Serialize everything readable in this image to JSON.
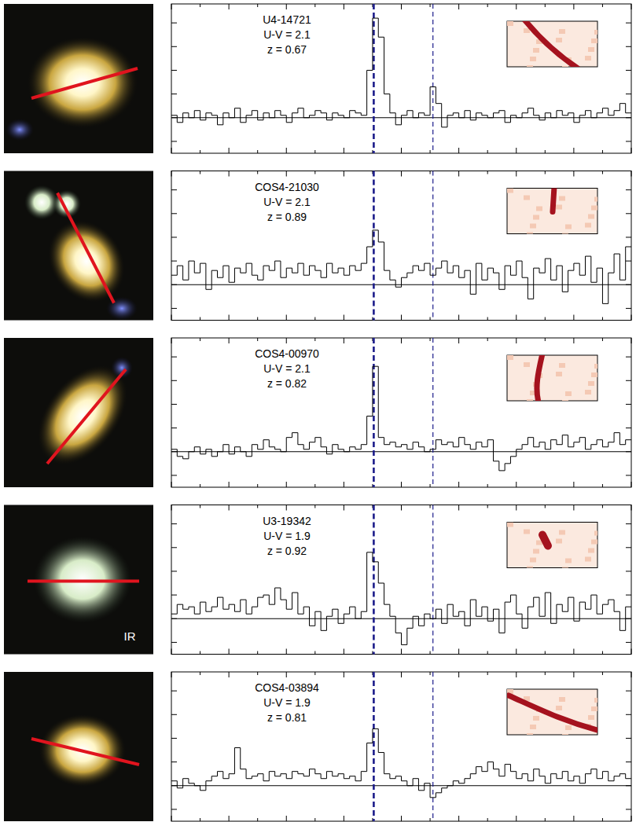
{
  "chart_data": [
    {
      "type": "line",
      "line_style": "step",
      "annotations": [
        "U4-14721",
        "U-V = 2.1",
        "z = 0.67"
      ],
      "x": [
        0,
        1,
        2,
        3,
        4,
        5,
        6,
        7,
        8,
        9,
        10,
        11,
        12,
        13,
        14,
        15,
        16,
        17,
        18,
        19,
        20,
        21,
        22,
        23,
        24,
        25,
        26,
        27,
        28,
        29,
        30,
        31,
        32,
        33,
        34,
        35,
        36,
        37,
        38,
        39,
        40,
        41,
        42,
        43,
        44,
        45,
        46,
        47,
        48,
        49,
        50,
        51,
        52,
        53,
        54,
        55,
        56,
        57,
        58,
        59,
        60,
        61,
        62,
        63,
        64,
        65,
        66,
        67,
        68,
        69,
        70,
        71,
        72,
        73,
        74,
        75,
        76,
        77,
        78,
        79
      ],
      "values": [
        0.1,
        -0.2,
        0.2,
        0.0,
        0.3,
        -0.1,
        0.2,
        0.1,
        -0.3,
        0.2,
        0.0,
        0.4,
        -0.2,
        0.1,
        0.3,
        -0.1,
        0.2,
        0.0,
        0.3,
        0.1,
        -0.2,
        0.2,
        0.4,
        0.0,
        0.1,
        0.3,
        0.2,
        -0.1,
        0.2,
        0.1,
        0.0,
        0.3,
        0.2,
        0.1,
        2.0,
        4.2,
        3.4,
        1.0,
        0.2,
        -0.3,
        0.1,
        0.3,
        0.0,
        0.2,
        0.1,
        1.3,
        0.6,
        -0.4,
        0.1,
        0.2,
        0.0,
        0.3,
        -0.1,
        0.2,
        0.1,
        0.0,
        0.2,
        0.3,
        -0.2,
        0.1,
        0.0,
        0.2,
        0.4,
        0.1,
        -0.1,
        0.2,
        0.0,
        0.3,
        0.1,
        0.2,
        -0.2,
        0.1,
        0.3,
        0.0,
        0.2,
        0.4,
        0.1,
        0.3,
        0.6,
        0.2
      ],
      "lines_x": [
        35.2,
        45.5
      ],
      "xlim": [
        0,
        80
      ],
      "ylim": [
        -1.5,
        4.8
      ],
      "xticks": [
        0,
        5,
        10,
        15,
        20,
        25,
        30,
        35,
        40,
        45,
        50,
        55,
        60,
        65,
        70,
        75,
        80
      ],
      "yticks": [
        -1,
        0,
        1,
        2,
        3,
        4
      ],
      "tick_labels": false,
      "grid": false
    },
    {
      "type": "line",
      "line_style": "step",
      "annotations": [
        "COS4-21030",
        "U-V = 2.1",
        "z = 0.89"
      ],
      "x": [
        0,
        1,
        2,
        3,
        4,
        5,
        6,
        7,
        8,
        9,
        10,
        11,
        12,
        13,
        14,
        15,
        16,
        17,
        18,
        19,
        20,
        21,
        22,
        23,
        24,
        25,
        26,
        27,
        28,
        29,
        30,
        31,
        32,
        33,
        34,
        35,
        36,
        37,
        38,
        39,
        40,
        41,
        42,
        43,
        44,
        45,
        46,
        47,
        48,
        49,
        50,
        51,
        52,
        53,
        54,
        55,
        56,
        57,
        58,
        59,
        60,
        61,
        62,
        63,
        64,
        65,
        66,
        67,
        68,
        69,
        70,
        71,
        72,
        73,
        74,
        75,
        76,
        77,
        78,
        79
      ],
      "values": [
        0.4,
        0.8,
        0.2,
        1.0,
        0.5,
        0.9,
        -0.2,
        0.6,
        0.3,
        0.8,
        0.1,
        0.7,
        0.5,
        0.9,
        0.4,
        0.2,
        0.8,
        0.6,
        1.0,
        0.3,
        0.7,
        0.5,
        0.9,
        0.4,
        0.8,
        0.6,
        0.3,
        0.9,
        0.5,
        0.7,
        0.4,
        0.8,
        0.6,
        0.9,
        1.6,
        2.3,
        1.8,
        0.6,
        0.2,
        -0.1,
        0.3,
        0.5,
        0.8,
        0.6,
        0.9,
        0.4,
        0.7,
        1.0,
        0.5,
        0.8,
        0.3,
        0.6,
        -0.4,
        0.9,
        0.2,
        0.7,
        0.5,
        -0.2,
        0.8,
        0.4,
        1.0,
        0.3,
        -0.6,
        0.7,
        0.5,
        1.1,
        0.2,
        0.8,
        -0.3,
        0.6,
        0.9,
        0.4,
        1.2,
        0.1,
        0.7,
        -0.8,
        0.5,
        1.3,
        0.2,
        1.6
      ],
      "lines_x": [
        35.2,
        45.5
      ],
      "xlim": [
        0,
        80
      ],
      "ylim": [
        -1.5,
        4.8
      ],
      "xticks": [
        0,
        5,
        10,
        15,
        20,
        25,
        30,
        35,
        40,
        45,
        50,
        55,
        60,
        65,
        70,
        75,
        80
      ],
      "yticks": [
        -1,
        0,
        1,
        2,
        3,
        4
      ],
      "tick_labels": false,
      "grid": false
    },
    {
      "type": "line",
      "line_style": "step",
      "annotations": [
        "COS4-00970",
        "U-V = 2.1",
        "z = 0.82"
      ],
      "x": [
        0,
        1,
        2,
        3,
        4,
        5,
        6,
        7,
        8,
        9,
        10,
        11,
        12,
        13,
        14,
        15,
        16,
        17,
        18,
        19,
        20,
        21,
        22,
        23,
        24,
        25,
        26,
        27,
        28,
        29,
        30,
        31,
        32,
        33,
        34,
        35,
        36,
        37,
        38,
        39,
        40,
        41,
        42,
        43,
        44,
        45,
        46,
        47,
        48,
        49,
        50,
        51,
        52,
        53,
        54,
        55,
        56,
        57,
        58,
        59,
        60,
        61,
        62,
        63,
        64,
        65,
        66,
        67,
        68,
        69,
        70,
        71,
        72,
        73,
        74,
        75,
        76,
        77,
        78,
        79
      ],
      "values": [
        0.1,
        -0.2,
        -0.3,
        0.0,
        0.2,
        -0.1,
        0.1,
        -0.2,
        0.0,
        0.3,
        -0.1,
        0.2,
        0.0,
        -0.2,
        0.3,
        0.1,
        0.5,
        0.2,
        0.1,
        0.0,
        0.6,
        0.8,
        0.3,
        0.1,
        0.4,
        0.6,
        0.2,
        -0.1,
        0.3,
        0.1,
        0.0,
        0.2,
        0.1,
        0.3,
        1.5,
        3.6,
        0.6,
        0.3,
        0.4,
        0.2,
        0.3,
        0.1,
        0.4,
        0.2,
        0.0,
        0.1,
        0.5,
        0.3,
        0.4,
        0.2,
        0.6,
        0.3,
        0.1,
        0.4,
        0.2,
        0.5,
        -0.4,
        -0.8,
        -0.5,
        -0.2,
        0.1,
        0.3,
        0.6,
        0.2,
        0.4,
        0.1,
        0.5,
        0.3,
        0.7,
        0.2,
        0.4,
        0.6,
        0.1,
        0.3,
        0.5,
        0.2,
        0.4,
        0.8,
        0.3,
        0.5
      ],
      "lines_x": [
        35.2,
        45.5
      ],
      "xlim": [
        0,
        80
      ],
      "ylim": [
        -1.5,
        4.8
      ],
      "xticks": [
        0,
        5,
        10,
        15,
        20,
        25,
        30,
        35,
        40,
        45,
        50,
        55,
        60,
        65,
        70,
        75,
        80
      ],
      "yticks": [
        -1,
        0,
        1,
        2,
        3,
        4
      ],
      "tick_labels": false,
      "grid": false
    },
    {
      "type": "line",
      "line_style": "step",
      "annotations": [
        "U3-19342",
        "U-V = 1.9",
        "z = 0.92"
      ],
      "x": [
        0,
        1,
        2,
        3,
        4,
        5,
        6,
        7,
        8,
        9,
        10,
        11,
        12,
        13,
        14,
        15,
        16,
        17,
        18,
        19,
        20,
        21,
        22,
        23,
        24,
        25,
        26,
        27,
        28,
        29,
        30,
        31,
        32,
        33,
        34,
        35,
        36,
        37,
        38,
        39,
        40,
        41,
        42,
        43,
        44,
        45,
        46,
        47,
        48,
        49,
        50,
        51,
        52,
        53,
        54,
        55,
        56,
        57,
        58,
        59,
        60,
        61,
        62,
        63,
        64,
        65,
        66,
        67,
        68,
        69,
        70,
        71,
        72,
        73,
        74,
        75,
        76,
        77,
        78,
        79
      ],
      "values": [
        0.2,
        0.6,
        0.4,
        0.5,
        0.2,
        0.7,
        0.3,
        0.5,
        0.9,
        0.4,
        0.6,
        0.3,
        0.8,
        0.2,
        0.5,
        0.9,
        1.0,
        0.6,
        1.3,
        0.8,
        0.4,
        1.1,
        0.2,
        0.5,
        -0.3,
        0.3,
        -0.5,
        0.1,
        0.4,
        -0.2,
        0.2,
        0.5,
        0.0,
        0.3,
        2.8,
        2.4,
        1.5,
        0.6,
        0.1,
        -0.6,
        -1.1,
        -0.4,
        0.1,
        -0.3,
        0.2,
        0.0,
        0.4,
        -0.2,
        0.6,
        0.1,
        0.3,
        -0.3,
        0.8,
        0.1,
        0.5,
        -0.1,
        0.4,
        -0.6,
        0.7,
        1.0,
        0.2,
        -0.4,
        0.5,
        0.9,
        0.1,
        1.1,
        -0.2,
        0.6,
        0.3,
        0.9,
        -0.1,
        0.7,
        0.4,
        1.0,
        0.2,
        0.6,
        0.8,
        0.3,
        -0.5,
        0.5
      ],
      "lines_x": [
        35.2,
        45.5
      ],
      "xlim": [
        0,
        80
      ],
      "ylim": [
        -1.5,
        4.8
      ],
      "xticks": [
        0,
        5,
        10,
        15,
        20,
        25,
        30,
        35,
        40,
        45,
        50,
        55,
        60,
        65,
        70,
        75,
        80
      ],
      "yticks": [
        -1,
        0,
        1,
        2,
        3,
        4
      ],
      "tick_labels": false,
      "grid": false
    },
    {
      "type": "line",
      "line_style": "step",
      "annotations": [
        "COS4-03894",
        "U-V = 1.9",
        "z = 0.81"
      ],
      "x": [
        0,
        1,
        2,
        3,
        4,
        5,
        6,
        7,
        8,
        9,
        10,
        11,
        12,
        13,
        14,
        15,
        16,
        17,
        18,
        19,
        20,
        21,
        22,
        23,
        24,
        25,
        26,
        27,
        28,
        29,
        30,
        31,
        32,
        33,
        34,
        35,
        36,
        37,
        38,
        39,
        40,
        41,
        42,
        43,
        44,
        45,
        46,
        47,
        48,
        49,
        50,
        51,
        52,
        53,
        54,
        55,
        56,
        57,
        58,
        59,
        60,
        61,
        62,
        63,
        64,
        65,
        66,
        67,
        68,
        69,
        70,
        71,
        72,
        73,
        74,
        75,
        76,
        77,
        78,
        79
      ],
      "values": [
        0.2,
        -0.1,
        0.3,
        0.1,
        0.0,
        -0.2,
        0.2,
        0.4,
        0.6,
        0.3,
        0.5,
        1.6,
        0.7,
        0.3,
        0.4,
        0.5,
        0.2,
        0.6,
        0.4,
        0.5,
        0.3,
        0.6,
        0.5,
        0.4,
        0.7,
        0.5,
        0.3,
        0.6,
        0.4,
        0.5,
        0.3,
        0.4,
        0.2,
        0.6,
        1.8,
        2.4,
        1.4,
        0.5,
        0.3,
        0.4,
        0.2,
        0.0,
        0.3,
        -0.2,
        0.1,
        -0.5,
        -0.3,
        -0.1,
        0.0,
        0.2,
        0.1,
        0.3,
        0.5,
        0.8,
        0.6,
        1.0,
        0.7,
        0.4,
        0.9,
        0.6,
        0.3,
        0.5,
        0.2,
        0.7,
        0.4,
        0.1,
        0.5,
        0.3,
        0.6,
        0.2,
        0.4,
        0.1,
        0.5,
        0.7,
        0.3,
        0.6,
        0.2,
        0.4,
        0.5,
        0.3
      ],
      "lines_x": [
        35.2,
        45.5
      ],
      "xlim": [
        0,
        80
      ],
      "ylim": [
        -1.5,
        4.8
      ],
      "xticks": [
        0,
        5,
        10,
        15,
        20,
        25,
        30,
        35,
        40,
        45,
        50,
        55,
        60,
        65,
        70,
        75,
        80
      ],
      "yticks": [
        -1,
        0,
        1,
        2,
        3,
        4
      ],
      "tick_labels": false,
      "grid": false
    }
  ],
  "image_texts": [
    {
      "row": 3,
      "text": "IR"
    }
  ]
}
